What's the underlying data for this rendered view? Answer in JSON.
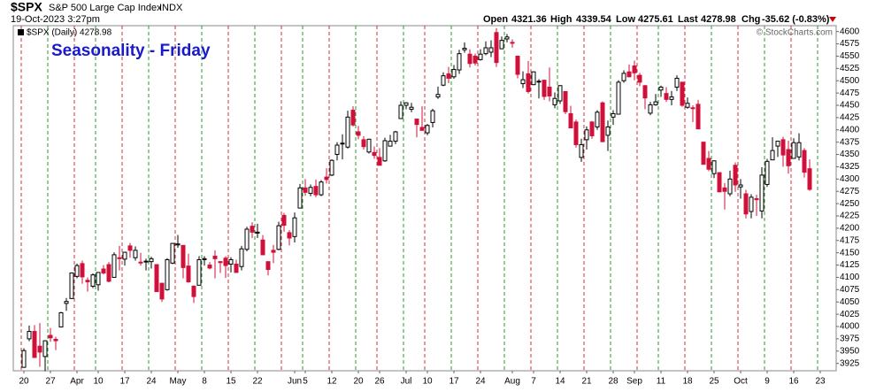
{
  "header": {
    "symbol": "$SPX",
    "name": "S&P 500 Large Cap Index",
    "exchange": "INDX",
    "timestamp": "19-Oct-2023 3:27pm",
    "open_label": "Open",
    "open": "4321.36",
    "high_label": "High",
    "high": "4339.54",
    "low_label": "Low",
    "low": "4275.61",
    "last_label": "Last",
    "last": "4278.98",
    "chg_label": "Chg",
    "chg": "-35.62 (-0.83%)",
    "copyright": "© StockCharts.com"
  },
  "chart_data": {
    "type": "candlestick",
    "title": "Seasonality - Friday",
    "legend": "$SPX (Daily) 4278.98",
    "up_color": "#ffffff",
    "down_color": "#d0103a",
    "grid": false,
    "ylim": [
      3910,
      4612
    ],
    "yticks": [
      3925,
      3950,
      3975,
      4000,
      4025,
      4050,
      4075,
      4100,
      4125,
      4150,
      4175,
      4200,
      4225,
      4250,
      4275,
      4300,
      4325,
      4350,
      4375,
      4400,
      4425,
      4450,
      4475,
      4500,
      4525,
      4550,
      4575,
      4600
    ],
    "xlim": [
      -2,
      153
    ],
    "xticks": [
      {
        "value": 0,
        "label": "20"
      },
      {
        "value": 5,
        "label": "27"
      },
      {
        "value": 10,
        "label": "Apr"
      },
      {
        "value": 14,
        "label": "10"
      },
      {
        "value": 19,
        "label": "17"
      },
      {
        "value": 24,
        "label": "24"
      },
      {
        "value": 29,
        "label": "May"
      },
      {
        "value": 34,
        "label": "8"
      },
      {
        "value": 39,
        "label": "15"
      },
      {
        "value": 44,
        "label": "22"
      },
      {
        "value": 51,
        "label": "Jun"
      },
      {
        "value": 53,
        "label": "5"
      },
      {
        "value": 58,
        "label": "12"
      },
      {
        "value": 63,
        "label": "20"
      },
      {
        "value": 67,
        "label": "26"
      },
      {
        "value": 72,
        "label": "Jul"
      },
      {
        "value": 76,
        "label": "10"
      },
      {
        "value": 81,
        "label": "17"
      },
      {
        "value": 86,
        "label": "24"
      },
      {
        "value": 92,
        "label": "Aug"
      },
      {
        "value": 96,
        "label": "7"
      },
      {
        "value": 101,
        "label": "14"
      },
      {
        "value": 106,
        "label": "21"
      },
      {
        "value": 111,
        "label": "28"
      },
      {
        "value": 115,
        "label": "Sep"
      },
      {
        "value": 120,
        "label": "11"
      },
      {
        "value": 125,
        "label": "18"
      },
      {
        "value": 130,
        "label": "25"
      },
      {
        "value": 135,
        "label": "Oct"
      },
      {
        "value": 140,
        "label": "9"
      },
      {
        "value": 145,
        "label": "16"
      },
      {
        "value": 150,
        "label": "23"
      }
    ],
    "candles": [
      [
        3917,
        3956,
        3916,
        3951
      ],
      [
        3975,
        4002,
        3970,
        3990
      ],
      [
        3990,
        4003,
        3936,
        3937
      ],
      [
        3960,
        4007,
        3918,
        3948
      ],
      [
        3939,
        3972,
        3909,
        3971
      ],
      [
        3982,
        3997,
        3969,
        3977
      ],
      [
        3974,
        3979,
        3952,
        3971
      ],
      [
        3999,
        4030,
        3999,
        4028
      ],
      [
        4047,
        4058,
        4032,
        4051
      ],
      [
        4057,
        4110,
        4056,
        4109
      ],
      [
        4102,
        4128,
        4098,
        4124
      ],
      [
        4128,
        4134,
        4087,
        4101
      ],
      [
        4094,
        4100,
        4071,
        4091
      ],
      [
        4082,
        4108,
        4078,
        4105
      ],
      [
        4085,
        4110,
        4073,
        4110
      ],
      [
        4117,
        4125,
        4106,
        4109
      ],
      [
        4126,
        4131,
        4090,
        4092
      ],
      [
        4100,
        4151,
        4100,
        4146
      ],
      [
        4140,
        4164,
        4114,
        4138
      ],
      [
        4137,
        4152,
        4124,
        4151
      ],
      [
        4164,
        4170,
        4140,
        4155
      ],
      [
        4140,
        4163,
        4134,
        4155
      ],
      [
        4131,
        4150,
        4124,
        4130
      ],
      [
        4132,
        4138,
        4114,
        4133
      ],
      [
        4132,
        4142,
        4118,
        4138
      ],
      [
        4126,
        4127,
        4071,
        4071
      ],
      [
        4088,
        4089,
        4050,
        4056
      ],
      [
        4075,
        4139,
        4073,
        4136
      ],
      [
        4129,
        4170,
        4127,
        4169
      ],
      [
        4166,
        4186,
        4160,
        4168
      ],
      [
        4165,
        4165,
        4098,
        4120
      ],
      [
        4123,
        4148,
        4089,
        4091
      ],
      [
        4082,
        4084,
        4048,
        4061
      ],
      [
        4084,
        4143,
        4084,
        4136
      ],
      [
        4136,
        4143,
        4124,
        4138
      ],
      [
        4125,
        4131,
        4116,
        4119
      ],
      [
        4143,
        4155,
        4098,
        4138
      ],
      [
        4132,
        4133,
        4109,
        4130
      ],
      [
        4139,
        4143,
        4099,
        4124
      ],
      [
        4127,
        4141,
        4110,
        4136
      ],
      [
        4127,
        4136,
        4109,
        4110
      ],
      [
        4122,
        4164,
        4114,
        4158
      ],
      [
        4157,
        4203,
        4153,
        4198
      ],
      [
        4204,
        4212,
        4180,
        4192
      ],
      [
        4190,
        4209,
        4180,
        4192
      ],
      [
        4176,
        4186,
        4145,
        4146
      ],
      [
        4132,
        4132,
        4104,
        4116
      ],
      [
        4155,
        4166,
        4129,
        4151
      ],
      [
        4157,
        4213,
        4155,
        4205
      ],
      [
        4226,
        4231,
        4193,
        4206
      ],
      [
        4191,
        4196,
        4165,
        4180
      ],
      [
        4183,
        4232,
        4171,
        4221
      ],
      [
        4241,
        4290,
        4241,
        4282
      ],
      [
        4282,
        4300,
        4266,
        4273
      ],
      [
        4271,
        4289,
        4265,
        4283
      ],
      [
        4285,
        4299,
        4263,
        4268
      ],
      [
        4268,
        4298,
        4265,
        4294
      ],
      [
        4304,
        4322,
        4291,
        4299
      ],
      [
        4308,
        4340,
        4306,
        4338
      ],
      [
        4350,
        4375,
        4338,
        4369
      ],
      [
        4372,
        4391,
        4340,
        4373
      ],
      [
        4365,
        4439,
        4362,
        4426
      ],
      [
        4440,
        4448,
        4407,
        4410
      ],
      [
        4396,
        4408,
        4381,
        4389
      ],
      [
        4380,
        4387,
        4360,
        4366
      ],
      [
        4355,
        4382,
        4352,
        4381
      ],
      [
        4354,
        4366,
        4341,
        4348
      ],
      [
        4344,
        4363,
        4328,
        4328
      ],
      [
        4337,
        4384,
        4335,
        4378
      ],
      [
        4367,
        4390,
        4366,
        4377
      ],
      [
        4377,
        4398,
        4371,
        4396
      ],
      [
        4423,
        4458,
        4423,
        4450
      ],
      [
        4450,
        4456,
        4442,
        4455
      ],
      [
        4442,
        4455,
        4436,
        4446
      ],
      [
        4422,
        4423,
        4385,
        4411
      ],
      [
        4405,
        4448,
        4399,
        4399
      ],
      [
        4394,
        4412,
        4389,
        4409
      ],
      [
        4415,
        4443,
        4405,
        4439
      ],
      [
        4467,
        4488,
        4463,
        4472
      ],
      [
        4491,
        4517,
        4489,
        4510
      ],
      [
        4514,
        4528,
        4495,
        4505
      ],
      [
        4508,
        4532,
        4504,
        4523
      ],
      [
        4522,
        4563,
        4514,
        4555
      ],
      [
        4563,
        4578,
        4557,
        4566
      ],
      [
        4554,
        4564,
        4527,
        4535
      ],
      [
        4550,
        4555,
        4531,
        4536
      ],
      [
        4543,
        4564,
        4541,
        4554
      ],
      [
        4555,
        4580,
        4552,
        4567
      ],
      [
        4558,
        4582,
        4548,
        4567
      ],
      [
        4598,
        4607,
        4528,
        4537
      ],
      [
        4565,
        4590,
        4564,
        4582
      ],
      [
        4585,
        4595,
        4578,
        4589
      ],
      [
        4578,
        4584,
        4567,
        4577
      ],
      [
        4550,
        4550,
        4505,
        4513
      ],
      [
        4494,
        4519,
        4485,
        4502
      ],
      [
        4514,
        4540,
        4474,
        4478
      ],
      [
        4492,
        4519,
        4491,
        4518
      ],
      [
        4498,
        4503,
        4464,
        4499
      ],
      [
        4501,
        4502,
        4461,
        4468
      ],
      [
        4487,
        4527,
        4458,
        4469
      ],
      [
        4451,
        4476,
        4444,
        4464
      ],
      [
        4459,
        4491,
        4453,
        4490
      ],
      [
        4478,
        4478,
        4432,
        4437
      ],
      [
        4433,
        4449,
        4404,
        4404
      ],
      [
        4416,
        4421,
        4364,
        4370
      ],
      [
        4344,
        4382,
        4335,
        4370
      ],
      [
        4380,
        4407,
        4360,
        4400
      ],
      [
        4416,
        4418,
        4382,
        4388
      ],
      [
        4406,
        4440,
        4400,
        4436
      ],
      [
        4455,
        4458,
        4375,
        4376
      ],
      [
        4389,
        4419,
        4357,
        4406
      ],
      [
        4426,
        4440,
        4410,
        4433
      ],
      [
        4432,
        4501,
        4431,
        4497
      ],
      [
        4500,
        4521,
        4496,
        4515
      ],
      [
        4518,
        4533,
        4507,
        4508
      ],
      [
        4530,
        4541,
        4501,
        4516
      ],
      [
        4511,
        4516,
        4489,
        4497
      ],
      [
        4490,
        4491,
        4442,
        4465
      ],
      [
        4434,
        4457,
        4430,
        4451
      ],
      [
        4451,
        4473,
        4449,
        4457
      ],
      [
        4481,
        4490,
        4467,
        4487
      ],
      [
        4474,
        4487,
        4457,
        4462
      ],
      [
        4462,
        4479,
        4450,
        4467
      ],
      [
        4487,
        4511,
        4479,
        4505
      ],
      [
        4497,
        4497,
        4447,
        4450
      ],
      [
        4446,
        4466,
        4443,
        4454
      ],
      [
        4445,
        4450,
        4416,
        4444
      ],
      [
        4452,
        4461,
        4402,
        4402
      ],
      [
        4375,
        4376,
        4329,
        4330
      ],
      [
        4342,
        4357,
        4316,
        4320
      ],
      [
        4311,
        4338,
        4302,
        4337
      ],
      [
        4313,
        4314,
        4273,
        4274
      ],
      [
        4282,
        4292,
        4238,
        4275
      ],
      [
        4270,
        4317,
        4265,
        4300
      ],
      [
        4328,
        4334,
        4274,
        4288
      ],
      [
        4284,
        4300,
        4260,
        4288
      ],
      [
        4270,
        4278,
        4220,
        4229
      ],
      [
        4234,
        4269,
        4220,
        4263
      ],
      [
        4260,
        4268,
        4225,
        4258
      ],
      [
        4235,
        4324,
        4220,
        4308
      ],
      [
        4289,
        4341,
        4284,
        4336
      ],
      [
        4339,
        4385,
        4339,
        4358
      ],
      [
        4367,
        4378,
        4345,
        4377
      ],
      [
        4380,
        4386,
        4325,
        4349
      ],
      [
        4360,
        4378,
        4311,
        4327
      ],
      [
        4342,
        4383,
        4342,
        4374
      ],
      [
        4345,
        4393,
        4338,
        4374
      ],
      [
        4358,
        4363,
        4303,
        4314
      ],
      [
        4321,
        4340,
        4276,
        4279
      ]
    ]
  }
}
